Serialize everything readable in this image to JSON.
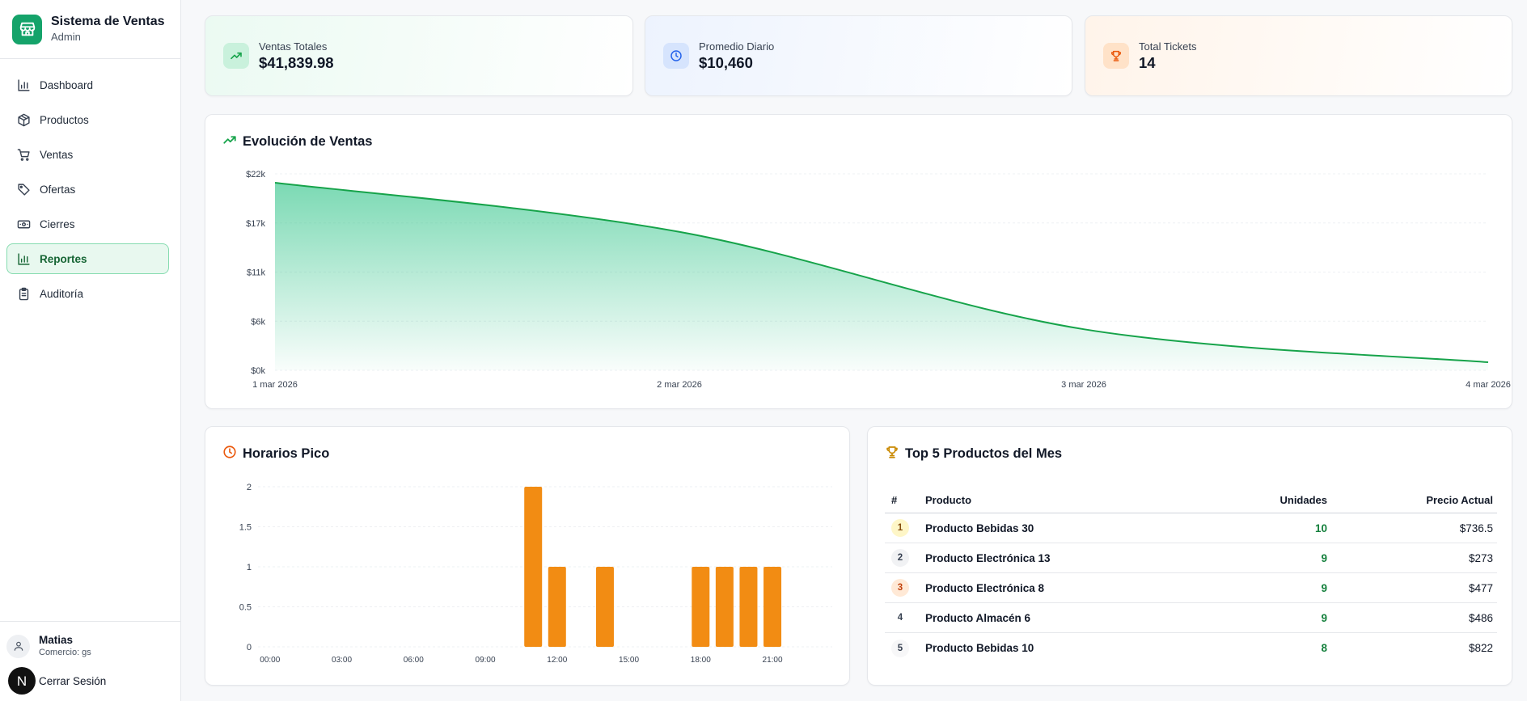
{
  "sidebar": {
    "brand_title": "Sistema de Ventas",
    "brand_subtitle": "Admin",
    "items": [
      {
        "label": "Dashboard",
        "icon": "bar-chart-icon"
      },
      {
        "label": "Productos",
        "icon": "package-icon"
      },
      {
        "label": "Ventas",
        "icon": "cart-icon"
      },
      {
        "label": "Ofertas",
        "icon": "tag-icon"
      },
      {
        "label": "Cierres",
        "icon": "banknote-icon"
      },
      {
        "label": "Reportes",
        "icon": "bar-chart-icon",
        "active": true
      },
      {
        "label": "Auditoría",
        "icon": "clipboard-icon"
      }
    ],
    "user_name": "Matias",
    "user_store": "Comercio: gs",
    "logout_badge": "N",
    "logout_label": "Cerrar Sesión"
  },
  "stats": [
    {
      "label": "Ventas Totales",
      "value": "$41,839.98",
      "icon": "trending-up-icon",
      "color": "#16a34a"
    },
    {
      "label": "Promedio Diario",
      "value": "$10,460",
      "icon": "clock-icon",
      "color": "#2563eb"
    },
    {
      "label": "Total Tickets",
      "value": "14",
      "icon": "trophy-icon",
      "color": "#ea580c"
    }
  ],
  "evolucion": {
    "title": "Evolución de Ventas",
    "chart_data": {
      "type": "area",
      "x": [
        "1 mar 2026",
        "2 mar 2026",
        "3 mar 2026",
        "4 mar 2026"
      ],
      "values": [
        21000,
        15500,
        4600,
        900
      ],
      "y_ticks": [
        "$0k",
        "$6k",
        "$11k",
        "$17k",
        "$22k"
      ],
      "y_tick_values": [
        0,
        5500,
        11000,
        16500,
        22000
      ],
      "ylim": [
        0,
        22000
      ],
      "color": "#16a34a",
      "grid": true
    }
  },
  "horarios": {
    "title": "Horarios Pico",
    "chart_data": {
      "type": "bar",
      "categories": [
        "00:00",
        "01:00",
        "02:00",
        "03:00",
        "04:00",
        "05:00",
        "06:00",
        "07:00",
        "08:00",
        "09:00",
        "10:00",
        "11:00",
        "12:00",
        "13:00",
        "14:00",
        "15:00",
        "16:00",
        "17:00",
        "18:00",
        "19:00",
        "20:00",
        "21:00",
        "22:00",
        "23:00"
      ],
      "x_tick_labels": [
        "00:00",
        "03:00",
        "06:00",
        "09:00",
        "12:00",
        "15:00",
        "18:00",
        "21:00"
      ],
      "values": [
        0,
        0,
        0,
        0,
        0,
        0,
        0,
        0,
        0,
        0,
        0,
        2,
        1,
        0,
        1,
        0,
        0,
        0,
        1,
        1,
        1,
        1,
        0,
        0
      ],
      "y_ticks": [
        "0",
        "0.5",
        "1",
        "1.5",
        "2"
      ],
      "y_tick_values": [
        0,
        0.5,
        1,
        1.5,
        2
      ],
      "ylim": [
        0,
        2
      ],
      "color": "#f28c13",
      "grid": true
    }
  },
  "top5": {
    "title": "Top 5 Productos del Mes",
    "headers": {
      "rank": "#",
      "product": "Producto",
      "units": "Unidades",
      "price": "Precio Actual"
    },
    "rows": [
      {
        "rank": "1",
        "product": "Producto Bebidas 30",
        "units": "10",
        "price": "$736.5"
      },
      {
        "rank": "2",
        "product": "Producto Electrónica 13",
        "units": "9",
        "price": "$273"
      },
      {
        "rank": "3",
        "product": "Producto Electrónica 8",
        "units": "9",
        "price": "$477"
      },
      {
        "rank": "4",
        "product": "Producto Almacén 6",
        "units": "9",
        "price": "$486"
      },
      {
        "rank": "5",
        "product": "Producto Bebidas 10",
        "units": "8",
        "price": "$822"
      }
    ]
  }
}
